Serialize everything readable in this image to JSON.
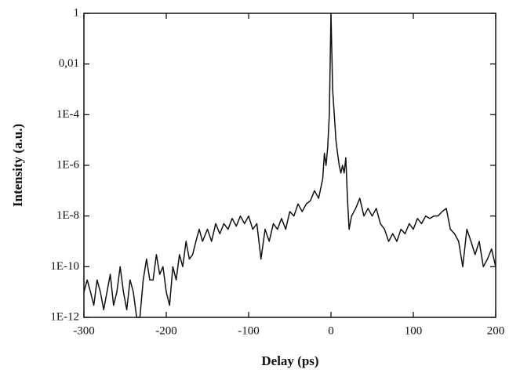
{
  "chart_data": {
    "type": "line",
    "xlabel": "Delay (ps)",
    "ylabel": "Intensity (a.u.)",
    "xlim": [
      -300,
      200
    ],
    "xticks": [
      -300,
      -200,
      -100,
      0,
      100,
      200
    ],
    "ylim": [
      1e-12,
      1
    ],
    "yscale": "log",
    "yticks": [
      1,
      {
        "value": 0.01,
        "label": "0,01"
      },
      {
        "value": 0.0001,
        "label": "1E-4"
      },
      {
        "value": 1e-06,
        "label": "1E-6"
      },
      {
        "value": 1e-08,
        "label": "1E-8"
      },
      {
        "value": 1e-10,
        "label": "1E-10"
      },
      {
        "value": 1e-12,
        "label": "1E-12"
      }
    ],
    "grid": false,
    "color": "#111111",
    "x": [
      -300,
      -296,
      -292,
      -288,
      -284,
      -280,
      -276,
      -272,
      -268,
      -264,
      -260,
      -256,
      -252,
      -248,
      -244,
      -240,
      -236,
      -232,
      -228,
      -224,
      -220,
      -216,
      -212,
      -208,
      -204,
      -200,
      -196,
      -192,
      -188,
      -184,
      -180,
      -176,
      -172,
      -168,
      -164,
      -160,
      -156,
      -150,
      -145,
      -140,
      -135,
      -130,
      -125,
      -120,
      -115,
      -110,
      -105,
      -100,
      -95,
      -90,
      -85,
      -80,
      -75,
      -70,
      -65,
      -60,
      -55,
      -50,
      -45,
      -40,
      -35,
      -30,
      -25,
      -20,
      -15,
      -10,
      -8,
      -6,
      -4,
      -2,
      0,
      2,
      4,
      6,
      8,
      10,
      12,
      14,
      16,
      18,
      20,
      22,
      25,
      30,
      35,
      40,
      45,
      50,
      55,
      60,
      65,
      70,
      75,
      80,
      85,
      90,
      95,
      100,
      105,
      110,
      115,
      120,
      125,
      130,
      135,
      140,
      145,
      150,
      155,
      160,
      165,
      170,
      175,
      180,
      185,
      190,
      195,
      200
    ],
    "values": [
      1e-11,
      3e-11,
      1e-11,
      3e-12,
      3e-11,
      1e-11,
      2e-12,
      1e-11,
      5e-11,
      3e-12,
      1e-11,
      1e-10,
      1e-11,
      2e-12,
      3e-11,
      1e-11,
      1e-12,
      1e-12,
      3e-11,
      2e-10,
      3e-11,
      3e-11,
      3e-10,
      5e-11,
      1e-10,
      1e-11,
      3e-12,
      1e-10,
      3e-11,
      3e-10,
      1e-10,
      1e-09,
      2e-10,
      3e-10,
      1e-09,
      3e-09,
      1e-09,
      3e-09,
      1e-09,
      5e-09,
      2e-09,
      5e-09,
      3e-09,
      8e-09,
      4e-09,
      1e-08,
      5e-09,
      1e-08,
      3e-09,
      5e-09,
      2e-10,
      3e-09,
      1e-09,
      5e-09,
      3e-09,
      8e-09,
      3e-09,
      1.5e-08,
      1e-08,
      3e-08,
      1.5e-08,
      3e-08,
      4e-08,
      1e-07,
      5e-08,
      3e-07,
      3e-06,
      1e-06,
      5e-06,
      0.0001,
      1,
      0.001,
      0.0001,
      1e-05,
      3e-06,
      1e-06,
      5e-07,
      1e-06,
      5e-07,
      2e-06,
      5e-08,
      3e-09,
      1e-08,
      2e-08,
      5e-08,
      1e-08,
      2e-08,
      1e-08,
      2e-08,
      5e-09,
      3e-09,
      1e-09,
      2e-09,
      1e-09,
      3e-09,
      2e-09,
      5e-09,
      3e-09,
      8e-09,
      5e-09,
      1e-08,
      8e-09,
      1e-08,
      1e-08,
      1.5e-08,
      2e-08,
      3e-09,
      2e-09,
      1e-09,
      1e-10,
      3e-09,
      1e-09,
      3e-10,
      1e-09,
      1e-10,
      2e-10,
      5e-10,
      1e-10
    ]
  }
}
